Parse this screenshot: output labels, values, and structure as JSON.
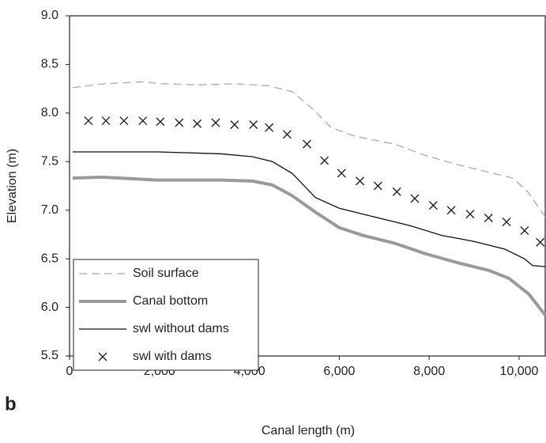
{
  "chart_data": {
    "type": "line",
    "panel_label": "b",
    "x_label": "Canal length (m)",
    "y_label": "Elevation (m)",
    "xlim": [
      0,
      10580
    ],
    "ylim": [
      5.5,
      9.0
    ],
    "xticks": [
      0,
      {
        "value": 2000,
        "label": "2,000"
      },
      {
        "value": 4000,
        "label": "4,000"
      },
      {
        "value": 6000,
        "label": "6,000"
      },
      {
        "value": 8000,
        "label": "8,000"
      },
      {
        "value": 10000,
        "label": "10,000"
      }
    ],
    "yticks": [
      5.5,
      {
        "value": 6,
        "label": "6.0"
      },
      6.5,
      {
        "value": 7,
        "label": "7.0"
      },
      7.5,
      {
        "value": 8,
        "label": "8.0"
      },
      8.5,
      {
        "value": 9,
        "label": "9.0"
      }
    ],
    "legend": "lower left",
    "series": [
      {
        "name": "Soil surface",
        "color": "#aaaaaa",
        "dash": "10 6",
        "width": 1.3,
        "marker": "none",
        "x": [
          70,
          740,
          1610,
          2140,
          2840,
          3720,
          4420,
          4950,
          5390,
          5820,
          6350,
          7230,
          7930,
          8630,
          9330,
          9860,
          10210,
          10580
        ],
        "values": [
          8.26,
          8.3,
          8.32,
          8.3,
          8.29,
          8.3,
          8.28,
          8.22,
          8.05,
          7.85,
          7.76,
          7.68,
          7.56,
          7.47,
          7.39,
          7.33,
          7.18,
          6.93
        ]
      },
      {
        "name": "Canal bottom",
        "color": "#9a9a9a",
        "dash": "none",
        "width": 4,
        "marker": "none",
        "x": [
          70,
          740,
          1960,
          3370,
          4070,
          4510,
          4950,
          5470,
          6000,
          6530,
          7230,
          7930,
          8630,
          9330,
          9770,
          10210,
          10580
        ],
        "values": [
          7.33,
          7.34,
          7.31,
          7.31,
          7.3,
          7.26,
          7.15,
          6.98,
          6.82,
          6.74,
          6.66,
          6.55,
          6.46,
          6.38,
          6.3,
          6.14,
          5.92
        ]
      },
      {
        "name": "swl without dams",
        "color": "#111111",
        "dash": "none",
        "width": 1.3,
        "marker": "none",
        "x": [
          70,
          1960,
          3370,
          4070,
          4510,
          4950,
          5470,
          6000,
          6700,
          7580,
          8280,
          8980,
          9680,
          10120,
          10300,
          10580
        ],
        "values": [
          7.6,
          7.6,
          7.58,
          7.55,
          7.5,
          7.38,
          7.13,
          7.02,
          6.94,
          6.84,
          6.74,
          6.68,
          6.6,
          6.5,
          6.43,
          6.42
        ]
      },
      {
        "name": "swl with dams",
        "color": "#222222",
        "dash": "none",
        "width": 1.3,
        "marker": "x",
        "x": [
          420,
          810,
          1210,
          1630,
          2020,
          2440,
          2840,
          3250,
          3670,
          4090,
          4440,
          4840,
          5280,
          5670,
          6050,
          6460,
          6860,
          7280,
          7680,
          8090,
          8490,
          8910,
          9320,
          9720,
          10120,
          10470
        ],
        "values": [
          7.92,
          7.92,
          7.92,
          7.92,
          7.91,
          7.9,
          7.89,
          7.9,
          7.88,
          7.88,
          7.85,
          7.78,
          7.68,
          7.51,
          7.38,
          7.3,
          7.25,
          7.19,
          7.12,
          7.05,
          7.0,
          6.96,
          6.92,
          6.88,
          6.79,
          6.67
        ]
      }
    ]
  }
}
